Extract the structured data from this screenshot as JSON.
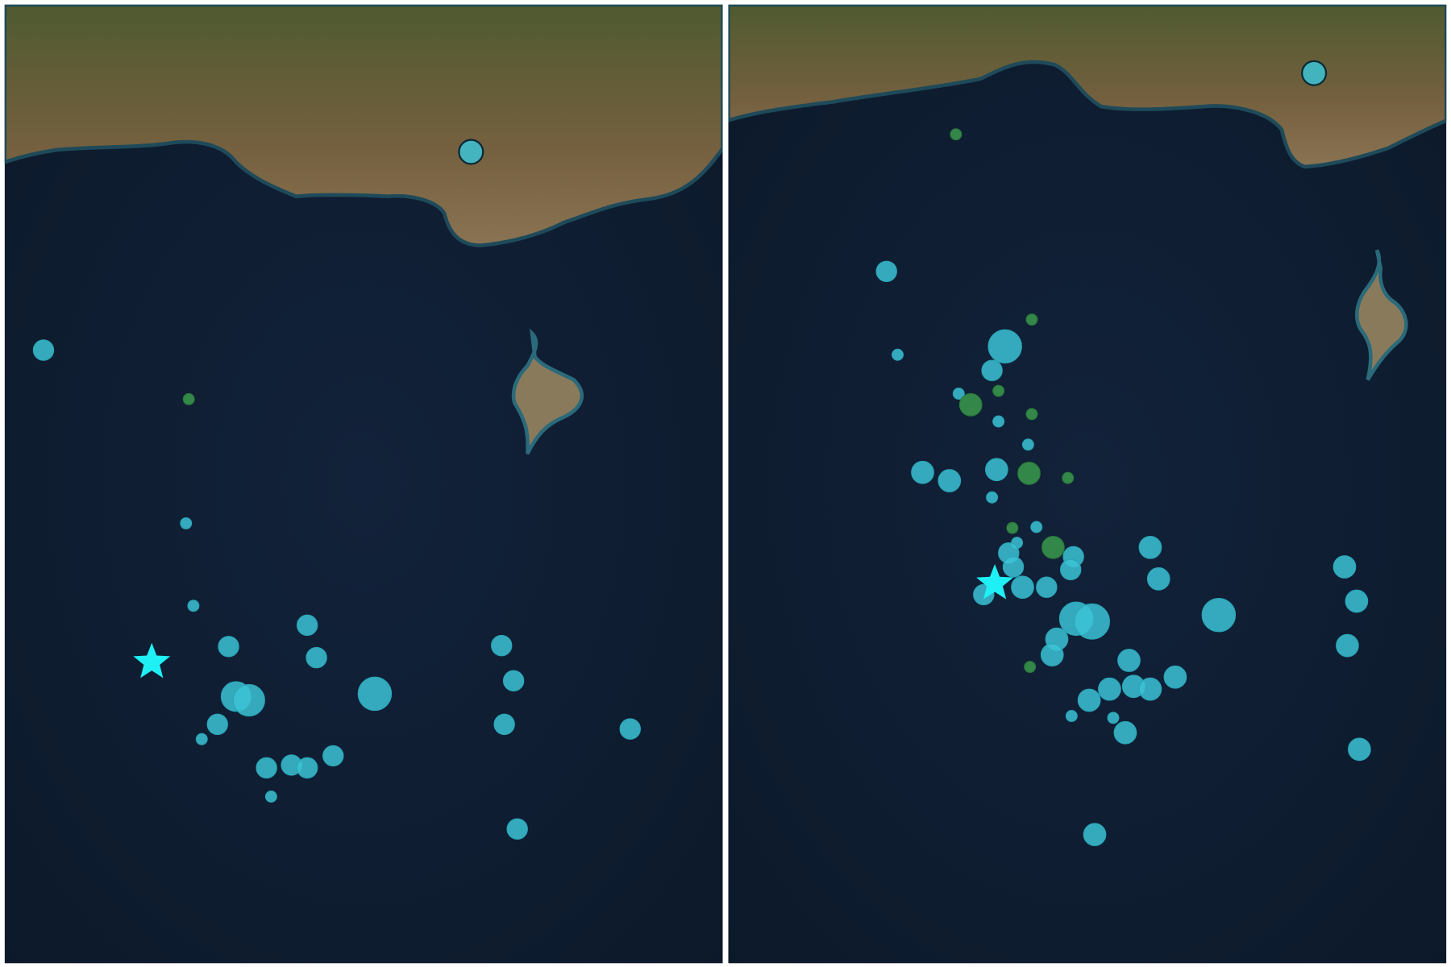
{
  "maps": [
    {
      "name": "map-left",
      "marker_style": "earthquake-circles",
      "epicenter_icon": "star-icon"
    },
    {
      "name": "map-right",
      "marker_style": "earthquake-circles",
      "epicenter_icon": "star-icon"
    }
  ],
  "colors": {
    "sea": "#0e1c30",
    "land": "#6b5a3c",
    "vegetation": "#4d6a2e",
    "marker_cyan": "#3cc3d6",
    "marker_green": "#3a9a4c",
    "epicenter_star": "#1ff0f5",
    "divider": "#ffffff"
  }
}
